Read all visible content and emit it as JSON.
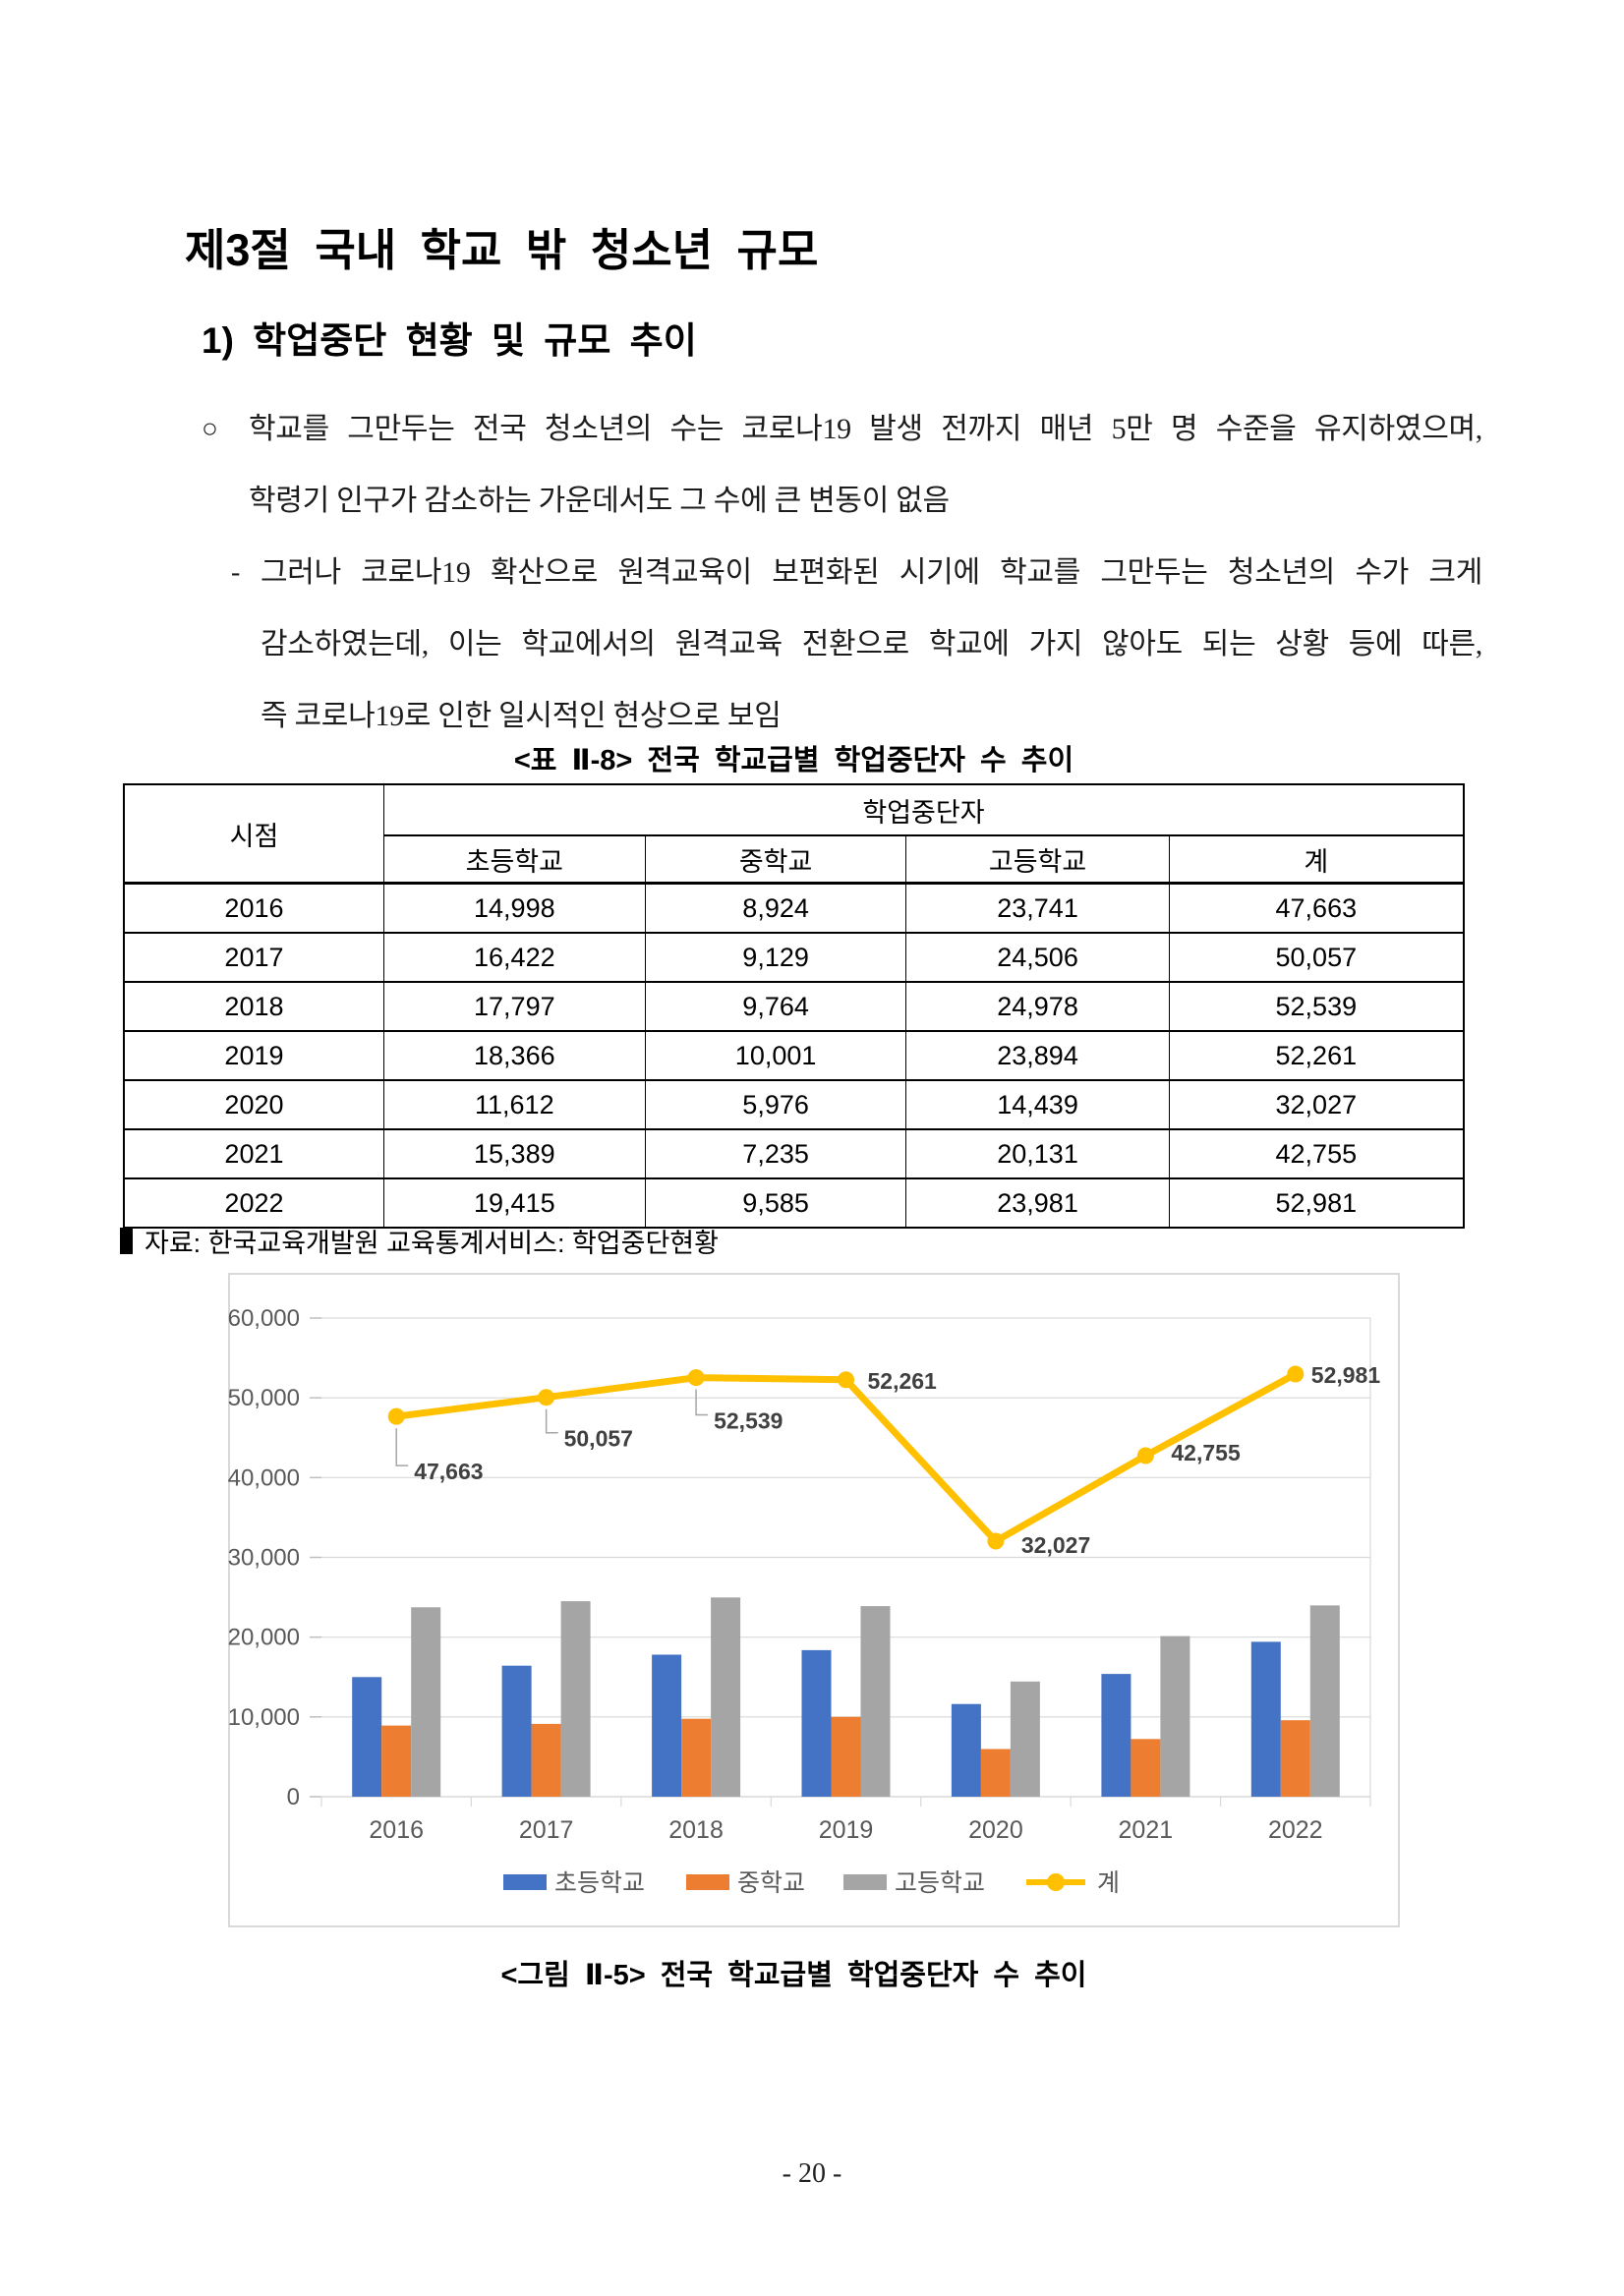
{
  "page": {
    "section_title": "제3절 국내 학교 밖 청소년 규모",
    "subsection_title": "1) 학업중단 현황 및 규모 추이",
    "page_number": "- 20 -"
  },
  "paragraphs": {
    "bullet_symbol": "○",
    "dash_symbol": "-",
    "bullet_lines": [
      "학교를 그만두는 전국 청소년의 수는 코로나19 발생 전까지 매년 5만 명 수준을 유지하였으며,",
      "학령기 인구가 감소하는 가운데서도 그 수에 큰 변동이 없음"
    ],
    "dash_lines": [
      "그러나 코로나19 확산으로 원격교육이 보편화된 시기에 학교를 그만두는 청소년의 수가 크게",
      "감소하였는데, 이는 학교에서의 원격교육 전환으로 학교에 가지 않아도 되는 상황 등에 따른,",
      "즉 코로나19로 인한 일시적인 현상으로 보임"
    ]
  },
  "table": {
    "caption": "<표 Ⅱ-8> 전국 학교급별 학업중단자 수 추이",
    "row_header": "시점",
    "group_header": "학업중단자",
    "sub_headers": [
      "초등학교",
      "중학교",
      "고등학교",
      "계"
    ],
    "rows": [
      [
        "2016",
        "14,998",
        "8,924",
        "23,741",
        "47,663"
      ],
      [
        "2017",
        "16,422",
        "9,129",
        "24,506",
        "50,057"
      ],
      [
        "2018",
        "17,797",
        "9,764",
        "24,978",
        "52,539"
      ],
      [
        "2019",
        "18,366",
        "10,001",
        "23,894",
        "52,261"
      ],
      [
        "2020",
        "11,612",
        "5,976",
        "14,439",
        "32,027"
      ],
      [
        "2021",
        "15,389",
        "7,235",
        "20,131",
        "42,755"
      ],
      [
        "2022",
        "19,415",
        "9,585",
        "23,981",
        "52,981"
      ]
    ],
    "source": "자료: 한국교육개발원 교육통계서비스: 학업중단현황"
  },
  "figure": {
    "caption": "<그림 Ⅱ-5> 전국 학교급별 학업중단자 수 추이"
  },
  "chart_data": {
    "type": "bar+line",
    "categories": [
      "2016",
      "2017",
      "2018",
      "2019",
      "2020",
      "2021",
      "2022"
    ],
    "series": [
      {
        "name": "초등학교",
        "type": "bar",
        "color": "#4472C4",
        "values": [
          14998,
          16422,
          17797,
          18366,
          11612,
          15389,
          19415
        ]
      },
      {
        "name": "중학교",
        "type": "bar",
        "color": "#ED7D31",
        "values": [
          8924,
          9129,
          9764,
          10001,
          5976,
          7235,
          9585
        ]
      },
      {
        "name": "고등학교",
        "type": "bar",
        "color": "#A5A5A5",
        "values": [
          23741,
          24506,
          24978,
          23894,
          14439,
          20131,
          23981
        ]
      },
      {
        "name": "계",
        "type": "line",
        "color": "#FFC000",
        "values": [
          47663,
          50057,
          52539,
          52261,
          32027,
          42755,
          52981
        ],
        "labels": [
          "47,663",
          "50,057",
          "52,539",
          "52,261",
          "32,027",
          "42,755",
          "52,981"
        ],
        "label_placements": [
          {
            "side": "below",
            "dx": 18,
            "dy": 64
          },
          {
            "side": "below",
            "dx": 18,
            "dy": 50
          },
          {
            "side": "below",
            "dx": 18,
            "dy": 52
          },
          {
            "side": "right",
            "dx": 22,
            "dy": 9
          },
          {
            "side": "right",
            "dx": 26,
            "dy": 12
          },
          {
            "side": "right",
            "dx": 26,
            "dy": 5
          },
          {
            "side": "right",
            "dx": 16,
            "dy": 9
          }
        ]
      }
    ],
    "ylim": [
      0,
      60000
    ],
    "ytick_step": 10000,
    "ytick_labels": [
      "0",
      "10,000",
      "20,000",
      "30,000",
      "40,000",
      "50,000",
      "60,000"
    ],
    "grid": true,
    "legend_position": "bottom",
    "axis_color": "#595959",
    "grid_color": "#D9D9D9",
    "label_color": "#404040",
    "frame_color": "#D9D9D9"
  }
}
